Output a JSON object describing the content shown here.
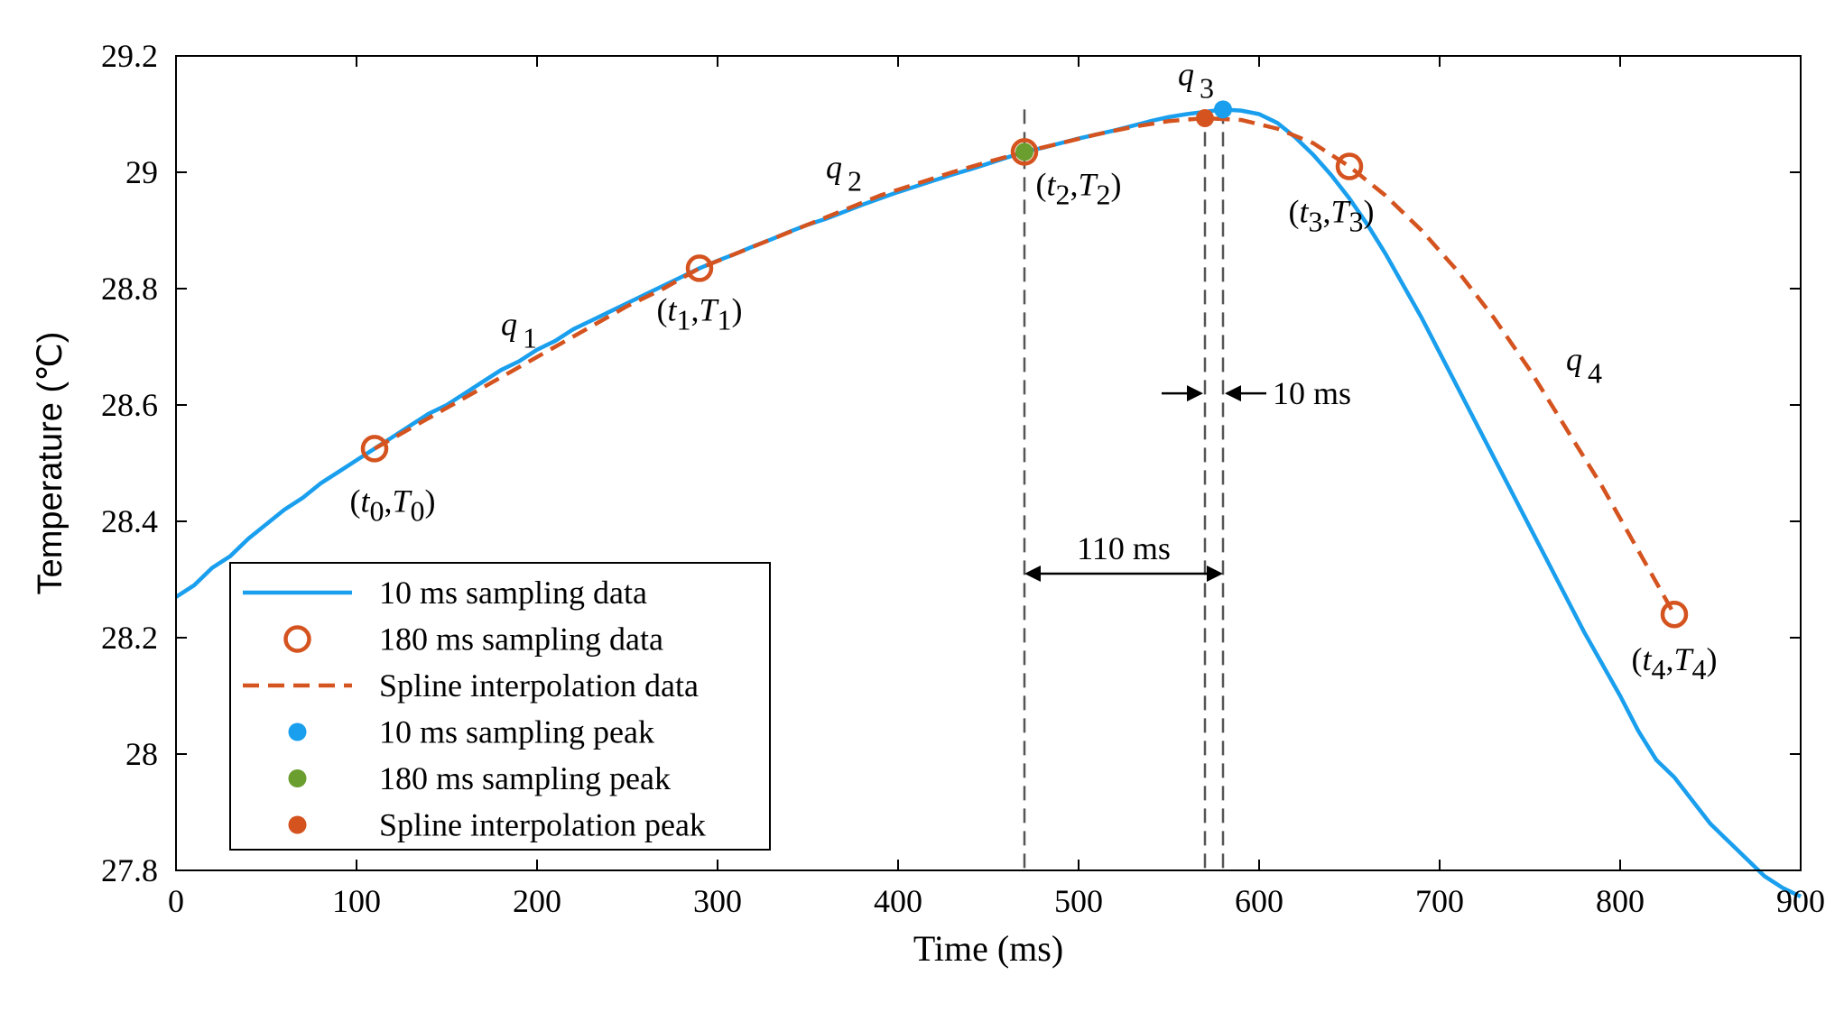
{
  "chart_data": {
    "type": "line",
    "xlabel": "Time (ms)",
    "ylabel": "Temperature (℃)",
    "xlim": [
      0,
      900
    ],
    "ylim": [
      27.8,
      29.2
    ],
    "xticks": [
      0,
      100,
      200,
      300,
      400,
      500,
      600,
      700,
      800,
      900
    ],
    "xtick_labels": [
      "0",
      "100",
      "200",
      "300",
      "400",
      "500",
      "600",
      "700",
      "800",
      "900"
    ],
    "yticks": [
      27.8,
      28,
      28.2,
      28.4,
      28.6,
      28.8,
      29,
      29.2
    ],
    "ytick_labels": [
      "27.8",
      "28",
      "28.2",
      "28.4",
      "28.6",
      "28.8",
      "29",
      "29.2"
    ],
    "grid": false,
    "legend_position": "bottom-left",
    "colors": {
      "blue": "#1a9fee",
      "orange": "#d4531f",
      "green": "#6a9e2e",
      "gray": "#555555"
    },
    "series": [
      {
        "name": "10 ms sampling data",
        "style": "solid",
        "color": "#1a9fee",
        "x": [
          0,
          10,
          20,
          30,
          40,
          50,
          60,
          70,
          80,
          90,
          100,
          110,
          120,
          130,
          140,
          150,
          160,
          170,
          180,
          190,
          200,
          210,
          220,
          230,
          240,
          250,
          260,
          270,
          280,
          290,
          300,
          310,
          320,
          330,
          340,
          350,
          360,
          370,
          380,
          390,
          400,
          410,
          420,
          430,
          440,
          450,
          460,
          470,
          480,
          490,
          500,
          510,
          520,
          530,
          540,
          550,
          560,
          570,
          580,
          590,
          600,
          610,
          620,
          630,
          640,
          650,
          660,
          670,
          680,
          690,
          700,
          710,
          720,
          730,
          740,
          750,
          760,
          770,
          780,
          790,
          800,
          810,
          820,
          830,
          840,
          850,
          860,
          870,
          880,
          890,
          900
        ],
        "values": [
          28.27,
          28.29,
          28.32,
          28.34,
          28.37,
          28.395,
          28.42,
          28.44,
          28.465,
          28.485,
          28.505,
          28.525,
          28.545,
          28.565,
          28.585,
          28.6,
          28.62,
          28.64,
          28.66,
          28.675,
          28.695,
          28.71,
          28.73,
          28.745,
          28.76,
          28.775,
          28.79,
          28.805,
          28.82,
          28.835,
          28.848,
          28.86,
          28.873,
          28.885,
          28.898,
          28.91,
          28.92,
          28.932,
          28.944,
          28.955,
          28.966,
          28.976,
          28.986,
          28.996,
          29.005,
          29.015,
          29.025,
          29.035,
          29.042,
          29.05,
          29.058,
          29.065,
          29.072,
          29.08,
          29.088,
          29.095,
          29.1,
          29.104,
          29.108,
          29.106,
          29.1,
          29.085,
          29.06,
          29.03,
          28.995,
          28.955,
          28.91,
          28.86,
          28.805,
          28.75,
          28.69,
          28.63,
          28.57,
          28.51,
          28.45,
          28.39,
          28.33,
          28.27,
          28.21,
          28.155,
          28.1,
          28.04,
          27.99,
          27.96,
          27.92,
          27.88,
          27.85,
          27.82,
          27.79,
          27.77,
          27.755
        ]
      },
      {
        "name": "180 ms sampling data",
        "style": "circle",
        "color": "#d4531f",
        "x": [
          110,
          290,
          470,
          650,
          830
        ],
        "values": [
          28.525,
          28.835,
          29.035,
          29.01,
          28.24
        ]
      },
      {
        "name": "Spline interpolation data",
        "style": "dashed",
        "color": "#d4531f",
        "x": [
          110,
          130,
          150,
          170,
          190,
          210,
          230,
          250,
          270,
          290,
          310,
          330,
          350,
          370,
          390,
          410,
          430,
          450,
          470,
          490,
          510,
          530,
          550,
          570,
          590,
          610,
          630,
          650,
          670,
          690,
          710,
          730,
          750,
          770,
          790,
          810,
          830
        ],
        "values": [
          28.525,
          28.56,
          28.595,
          28.63,
          28.665,
          28.7,
          28.735,
          28.77,
          28.8,
          28.835,
          28.86,
          28.885,
          28.91,
          28.935,
          28.96,
          28.98,
          29.0,
          29.018,
          29.035,
          29.05,
          29.065,
          29.078,
          29.088,
          29.093,
          29.09,
          29.075,
          29.05,
          29.01,
          28.96,
          28.9,
          28.83,
          28.75,
          28.66,
          28.56,
          28.46,
          28.35,
          28.24
        ]
      },
      {
        "name": "10 ms sampling peak",
        "style": "dot",
        "color": "#1a9fee",
        "x": [
          580
        ],
        "values": [
          29.108
        ]
      },
      {
        "name": "180 ms sampling peak",
        "style": "dot",
        "color": "#6a9e2e",
        "x": [
          470
        ],
        "values": [
          29.035
        ]
      },
      {
        "name": "Spline interpolation peak",
        "style": "dot",
        "color": "#d4531f",
        "x": [
          570
        ],
        "values": [
          29.093
        ]
      }
    ],
    "vlines": [
      470,
      570,
      580
    ],
    "annotations": {
      "points": [
        {
          "sub": "0",
          "x": 110,
          "y": 28.525
        },
        {
          "sub": "1",
          "x": 290,
          "y": 28.835
        },
        {
          "sub": "2",
          "x": 470,
          "y": 29.035
        },
        {
          "sub": "3",
          "x": 650,
          "y": 29.01
        },
        {
          "sub": "4",
          "x": 830,
          "y": 28.24
        }
      ],
      "q_labels": [
        {
          "letter": "q",
          "sub": "1",
          "x": 180,
          "y": 28.72
        },
        {
          "letter": "q",
          "sub": "2",
          "x": 360,
          "y": 28.99
        },
        {
          "letter": "q",
          "sub": "3",
          "x": 555,
          "y": 29.15
        },
        {
          "letter": "q",
          "sub": "4",
          "x": 770,
          "y": 28.66
        }
      ],
      "interval_110": {
        "text": "110 ms",
        "from": 470,
        "to": 580,
        "y": 28.31
      },
      "interval_10": {
        "text": "10 ms",
        "from": 570,
        "to": 580,
        "y": 28.62
      }
    }
  }
}
